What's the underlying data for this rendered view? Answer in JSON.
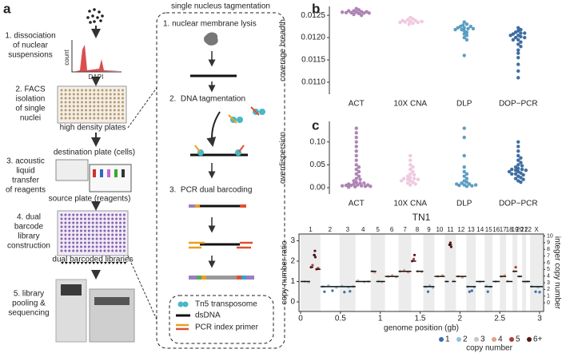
{
  "panels": [
    "a",
    "b",
    "c",
    "d"
  ],
  "panel_a": {
    "steps": [
      [
        "1. dissociation",
        "of nuclear",
        "suspensions"
      ],
      [
        "2. FACS",
        "isolation",
        "of single",
        "nuclei"
      ],
      [
        "3. acoustic",
        "liquid",
        "transfer",
        "of reagents"
      ],
      [
        "4. dual",
        "barcode",
        "library",
        "construction"
      ],
      [
        "5. library",
        "pooling &",
        "sequencing"
      ]
    ],
    "histogram": {
      "y_label": "count",
      "x_label": "DAPI"
    },
    "plate_labels": [
      "high density plates",
      "destination plate (cells)",
      "source plate (reagents)",
      "dual barcoded libraries"
    ]
  },
  "tagmentation": {
    "title": "single nucleus tagmentation",
    "steps": [
      "1. nuclear membrane lysis",
      "2.  DNA tagmentation",
      "3.  PCR dual barcoding"
    ],
    "legend": [
      "Tn5 transposome",
      "dsDNA",
      "PCR index primer"
    ]
  },
  "chart_data": [
    {
      "type": "swarm",
      "y_label": "coverage breadth",
      "categories": [
        "ACT",
        "10X CNA",
        "DLP",
        "DOP−PCR"
      ],
      "colors": [
        "#a678ae",
        "#edc3de",
        "#4b93bd",
        "#2b5f96"
      ],
      "values": [
        [
          0.01265,
          0.01262,
          0.0126,
          0.01258,
          0.01257,
          0.01256,
          0.01255,
          0.01254,
          0.01252,
          0.0125,
          0.0126,
          0.01258,
          0.01256,
          0.01255,
          0.01257
        ],
        [
          0.01245,
          0.01242,
          0.0124,
          0.01238,
          0.01236,
          0.01235,
          0.01234,
          0.01232,
          0.0123,
          0.01238,
          0.01236,
          0.01234
        ],
        [
          0.01235,
          0.0123,
          0.01228,
          0.01225,
          0.01222,
          0.0122,
          0.01218,
          0.01215,
          0.01212,
          0.01208,
          0.01205,
          0.012,
          0.01195,
          0.01225,
          0.01222,
          0.0122,
          0.01218,
          0.0116
        ],
        [
          0.01222,
          0.01218,
          0.01215,
          0.01212,
          0.0121,
          0.01208,
          0.01205,
          0.01202,
          0.012,
          0.01195,
          0.0119,
          0.01185,
          0.0118,
          0.01172,
          0.01165,
          0.01155,
          0.0114,
          0.01125,
          0.0111,
          0.0121,
          0.01205,
          0.012,
          0.01195
        ]
      ],
      "ylim": [
        0.01073,
        0.0127
      ],
      "yticks": [
        {
          "value": 0.011,
          "label": "0.0110"
        },
        0.0115,
        {
          "value": 0.012,
          "label": "0.0120"
        },
        0.0125
      ]
    },
    {
      "type": "swarm",
      "y_label": "overdispersion",
      "categories": [
        "ACT",
        "10X CNA",
        "DLP",
        "DOP−PCR"
      ],
      "colors": [
        "#a678ae",
        "#edc3de",
        "#4b93bd",
        "#2b5f96"
      ],
      "values": [
        [
          0.13,
          0.12,
          0.11,
          0.1,
          0.09,
          0.08,
          0.07,
          0.06,
          0.05,
          0.045,
          0.04,
          0.035,
          0.03,
          0.025,
          0.02,
          0.018,
          0.015,
          0.012,
          0.01,
          0.008,
          0.006,
          0.005,
          0.004,
          0.003,
          0.002,
          0.001,
          0.01,
          0.008,
          0.006,
          0.005,
          0.004,
          0.003
        ],
        [
          0.07,
          0.06,
          0.05,
          0.045,
          0.04,
          0.035,
          0.03,
          0.028,
          0.025,
          0.022,
          0.02,
          0.018,
          0.015,
          0.012,
          0.01,
          0.008,
          0.006,
          0.02,
          0.018,
          0.015
        ],
        [
          0.13,
          0.11,
          0.07,
          0.045,
          0.035,
          0.03,
          0.025,
          0.02,
          0.015,
          0.012,
          0.01,
          0.008,
          0.006,
          0.005,
          0.004,
          0.003,
          0.008,
          0.006
        ],
        [
          0.1,
          0.09,
          0.08,
          0.07,
          0.065,
          0.06,
          0.055,
          0.05,
          0.048,
          0.045,
          0.042,
          0.04,
          0.038,
          0.035,
          0.032,
          0.03,
          0.028,
          0.025,
          0.022,
          0.02,
          0.018,
          0.015,
          0.012,
          0.04,
          0.038,
          0.035,
          0.03
        ]
      ],
      "ylim": [
        -0.014,
        0.145
      ],
      "yticks": [
        {
          "value": 0,
          "label": "0.00"
        },
        0.05,
        {
          "value": 0.1,
          "label": "0.10"
        }
      ]
    },
    {
      "type": "scatter",
      "title": "TN1",
      "x_label": "genome position (gb)",
      "y_label": "copy number ratio",
      "y2_label": "integer copy number",
      "legend_title": "copy number",
      "chromosomes": [
        "1",
        "2",
        "3",
        "4",
        "5",
        "6",
        "7",
        "8",
        "9",
        "10",
        "11",
        "12",
        "13",
        "14",
        "15",
        "16",
        "17",
        "18",
        "19",
        "20",
        "21",
        "22",
        "X"
      ],
      "chrom_bounds": [
        0,
        0.25,
        0.49,
        0.69,
        0.88,
        1.06,
        1.23,
        1.39,
        1.54,
        1.68,
        1.81,
        1.95,
        2.08,
        2.2,
        2.31,
        2.41,
        2.5,
        2.58,
        2.66,
        2.72,
        2.78,
        2.83,
        2.88,
        3.04
      ],
      "xlim": [
        -0.02,
        3.05
      ],
      "xticks": [
        0,
        0.5,
        1,
        1.5,
        2,
        2.5,
        3
      ],
      "ylim": [
        -0.47,
        3.33
      ],
      "yticks": [
        0,
        1,
        2,
        3
      ],
      "y2lim": [
        -1.3,
        10.3
      ],
      "y2ticks": [
        0,
        1,
        2,
        3,
        4,
        5,
        6,
        7,
        8,
        9,
        10
      ],
      "segments": {
        "starts": [
          0,
          0.12,
          0.16,
          0.19,
          0.25,
          0.49,
          0.69,
          0.88,
          0.95,
          1.06,
          1.23,
          1.39,
          1.45,
          1.54,
          1.68,
          1.81,
          1.86,
          1.9,
          1.95,
          2.08,
          2.2,
          2.31,
          2.41,
          2.5,
          2.58,
          2.66,
          2.72,
          2.78,
          2.88
        ],
        "ends": [
          0.12,
          0.16,
          0.19,
          0.25,
          0.49,
          0.69,
          0.88,
          0.95,
          1.06,
          1.23,
          1.39,
          1.45,
          1.54,
          1.68,
          1.81,
          1.86,
          1.9,
          1.95,
          2.08,
          2.2,
          2.31,
          2.41,
          2.5,
          2.58,
          2.66,
          2.72,
          2.78,
          2.88,
          3.04
        ],
        "values": [
          1.0,
          1.7,
          2.3,
          1.6,
          0.75,
          0.75,
          1.0,
          1.5,
          1.0,
          1.25,
          1.5,
          2.0,
          1.5,
          0.75,
          1.25,
          1.0,
          2.8,
          1.0,
          1.25,
          0.75,
          1.0,
          0.75,
          1.0,
          1.25,
          1.0,
          1.5,
          1.25,
          1.0,
          0.75
        ]
      },
      "series": [
        {
          "name": "1",
          "color": "#3a6db0",
          "x": [
            0.3,
            0.4,
            0.55,
            0.62,
            1.6,
            2.12,
            2.15,
            2.35,
            2.95,
            3.0
          ],
          "values": [
            0.5,
            0.55,
            0.48,
            0.52,
            0.5,
            0.5,
            0.55,
            0.5,
            0.5,
            0.48
          ]
        },
        {
          "name": "2",
          "color": "#8fc1da",
          "x": [
            0.28,
            0.35,
            0.45,
            0.52,
            0.6,
            0.66,
            1.57,
            1.62,
            1.66,
            2.1,
            2.18,
            2.33,
            2.38,
            2.9,
            2.98
          ],
          "values": [
            0.75,
            0.8,
            0.7,
            0.78,
            0.72,
            0.76,
            0.74,
            0.8,
            0.7,
            0.75,
            0.72,
            0.78,
            0.74,
            0.76,
            0.72
          ]
        },
        {
          "name": "3",
          "color": "#c6c6c6",
          "x": [
            0.05,
            0.1,
            0.72,
            0.8,
            0.85,
            0.98,
            1.02,
            1.83,
            1.92,
            2.25,
            2.45,
            2.6,
            2.82,
            2.85
          ],
          "values": [
            1.0,
            0.95,
            1.05,
            0.98,
            1.0,
            1.02,
            0.97,
            1.0,
            1.03,
            0.98,
            1.0,
            1.02,
            0.98,
            1.0
          ]
        },
        {
          "name": "4",
          "color": "#e0a283",
          "x": [
            0.9,
            0.93,
            1.1,
            1.15,
            1.2,
            1.25,
            1.3,
            1.35,
            1.47,
            1.52,
            1.72,
            1.78,
            1.98,
            2.03,
            2.52,
            2.56,
            2.68,
            2.75
          ],
          "values": [
            1.5,
            1.45,
            1.25,
            1.3,
            1.22,
            1.5,
            1.55,
            1.45,
            1.5,
            1.48,
            1.25,
            1.3,
            1.25,
            1.2,
            1.25,
            1.3,
            1.5,
            1.25
          ]
        },
        {
          "name": "5",
          "color": "#b23a3a",
          "x": [
            0.13,
            0.15,
            0.2,
            0.22,
            1.4,
            1.42,
            2.7
          ],
          "values": [
            1.7,
            1.8,
            1.6,
            1.65,
            2.0,
            2.1,
            1.7
          ]
        },
        {
          "name": "6+",
          "color": "#5b1414",
          "x": [
            0.17,
            0.18,
            0.185,
            1.43,
            1.87,
            1.88,
            1.89
          ],
          "values": [
            2.3,
            2.5,
            2.2,
            2.3,
            2.8,
            2.9,
            2.7
          ]
        }
      ]
    }
  ]
}
